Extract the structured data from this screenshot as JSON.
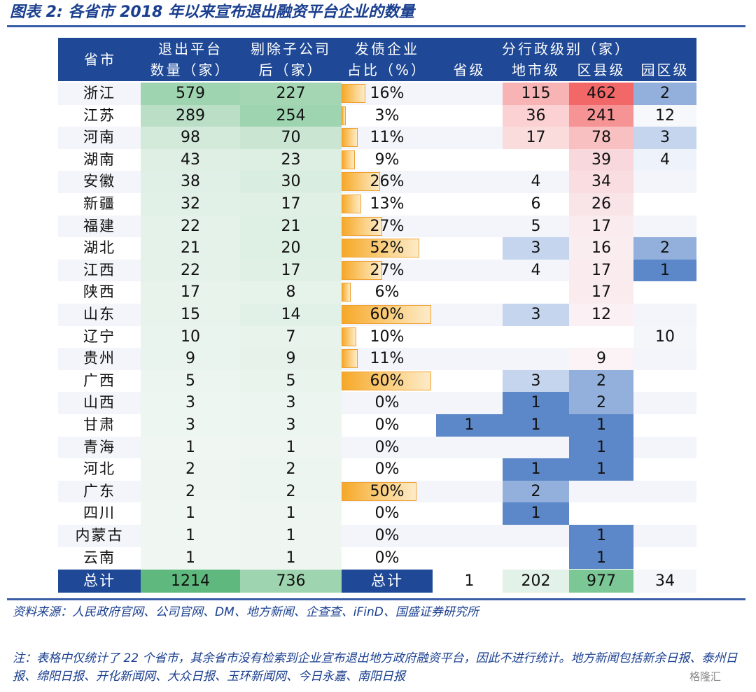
{
  "title": "图表 2:  各省市 2018 年以来宣布退出融资平台企业的数量",
  "header": {
    "province": "省市",
    "exit_line1": "退出平台",
    "exit_line2": "数量（家）",
    "excl_line1": "剔除子公司",
    "excl_line2": "后（家）",
    "bond_line1": "发债企业",
    "bond_line2": "占比（%）",
    "admin_group": "分行政级别（家）",
    "provincial": "省级",
    "city": "地市级",
    "county": "区县级",
    "park": "园区级"
  },
  "rows": [
    {
      "province": "浙江",
      "exit": "579",
      "excl": "227",
      "bond_pct": 16,
      "bond": "16%",
      "prov_level": "",
      "city": "115",
      "county": "462",
      "park": "2"
    },
    {
      "province": "江苏",
      "exit": "289",
      "excl": "254",
      "bond_pct": 3,
      "bond": "3%",
      "prov_level": "",
      "city": "36",
      "county": "241",
      "park": "12"
    },
    {
      "province": "河南",
      "exit": "98",
      "excl": "70",
      "bond_pct": 11,
      "bond": "11%",
      "prov_level": "",
      "city": "17",
      "county": "78",
      "park": "3"
    },
    {
      "province": "湖南",
      "exit": "43",
      "excl": "23",
      "bond_pct": 9,
      "bond": "9%",
      "prov_level": "",
      "city": "",
      "county": "39",
      "park": "4"
    },
    {
      "province": "安徽",
      "exit": "38",
      "excl": "30",
      "bond_pct": 26,
      "bond": "26%",
      "prov_level": "",
      "city": "4",
      "county": "34",
      "park": ""
    },
    {
      "province": "新疆",
      "exit": "32",
      "excl": "17",
      "bond_pct": 13,
      "bond": "13%",
      "prov_level": "",
      "city": "6",
      "county": "26",
      "park": ""
    },
    {
      "province": "福建",
      "exit": "22",
      "excl": "21",
      "bond_pct": 27,
      "bond": "27%",
      "prov_level": "",
      "city": "5",
      "county": "17",
      "park": ""
    },
    {
      "province": "湖北",
      "exit": "21",
      "excl": "20",
      "bond_pct": 52,
      "bond": "52%",
      "prov_level": "",
      "city": "3",
      "county": "16",
      "park": "2"
    },
    {
      "province": "江西",
      "exit": "22",
      "excl": "17",
      "bond_pct": 27,
      "bond": "27%",
      "prov_level": "",
      "city": "4",
      "county": "17",
      "park": "1"
    },
    {
      "province": "陕西",
      "exit": "17",
      "excl": "8",
      "bond_pct": 6,
      "bond": "6%",
      "prov_level": "",
      "city": "",
      "county": "17",
      "park": ""
    },
    {
      "province": "山东",
      "exit": "15",
      "excl": "14",
      "bond_pct": 60,
      "bond": "60%",
      "prov_level": "",
      "city": "3",
      "county": "12",
      "park": ""
    },
    {
      "province": "辽宁",
      "exit": "10",
      "excl": "7",
      "bond_pct": 10,
      "bond": "10%",
      "prov_level": "",
      "city": "",
      "county": "",
      "park": "10"
    },
    {
      "province": "贵州",
      "exit": "9",
      "excl": "9",
      "bond_pct": 11,
      "bond": "11%",
      "prov_level": "",
      "city": "",
      "county": "9",
      "park": ""
    },
    {
      "province": "广西",
      "exit": "5",
      "excl": "5",
      "bond_pct": 60,
      "bond": "60%",
      "prov_level": "",
      "city": "3",
      "county": "2",
      "park": ""
    },
    {
      "province": "山西",
      "exit": "3",
      "excl": "3",
      "bond_pct": 0,
      "bond": "0%",
      "prov_level": "",
      "city": "1",
      "county": "2",
      "park": ""
    },
    {
      "province": "甘肃",
      "exit": "3",
      "excl": "3",
      "bond_pct": 0,
      "bond": "0%",
      "prov_level": "1",
      "city": "1",
      "county": "1",
      "park": ""
    },
    {
      "province": "青海",
      "exit": "1",
      "excl": "1",
      "bond_pct": 0,
      "bond": "0%",
      "prov_level": "",
      "city": "",
      "county": "1",
      "park": ""
    },
    {
      "province": "河北",
      "exit": "2",
      "excl": "2",
      "bond_pct": 0,
      "bond": "0%",
      "prov_level": "",
      "city": "1",
      "county": "1",
      "park": ""
    },
    {
      "province": "广东",
      "exit": "2",
      "excl": "2",
      "bond_pct": 50,
      "bond": "50%",
      "prov_level": "",
      "city": "2",
      "county": "",
      "park": ""
    },
    {
      "province": "四川",
      "exit": "1",
      "excl": "1",
      "bond_pct": 0,
      "bond": "0%",
      "prov_level": "",
      "city": "1",
      "county": "",
      "park": ""
    },
    {
      "province": "内蒙古",
      "exit": "1",
      "excl": "1",
      "bond_pct": 0,
      "bond": "0%",
      "prov_level": "",
      "city": "",
      "county": "1",
      "park": ""
    },
    {
      "province": "云南",
      "exit": "1",
      "excl": "1",
      "bond_pct": 0,
      "bond": "0%",
      "prov_level": "",
      "city": "",
      "county": "1",
      "park": ""
    }
  ],
  "total": {
    "label": "总计",
    "exit": "1214",
    "excl": "736",
    "bond_label": "总计",
    "prov_level": "1",
    "city": "202",
    "county": "977",
    "park": "34"
  },
  "colors": {
    "header_bg": "#1f4996",
    "green_high": "#9fd4b0",
    "red_high": "#f26868",
    "blue_high": "#4f7fc5",
    "bar_orange": "#f6a828"
  },
  "source": "资料来源：人民政府官网、公司官网、DM、地方新闻、企查查、iFinD、国盛证券研究所",
  "note": "注：表格中仅统计了 22 个省市，其余省市没有检索到企业宣布退出地方政府融资平台，因此不进行统计。地方新闻包括新余日报、泰州日报、绵阳日报、开化新闻网、大众日报、玉环新闻网、今日永嘉、南阳日报",
  "watermark": "格隆汇"
}
